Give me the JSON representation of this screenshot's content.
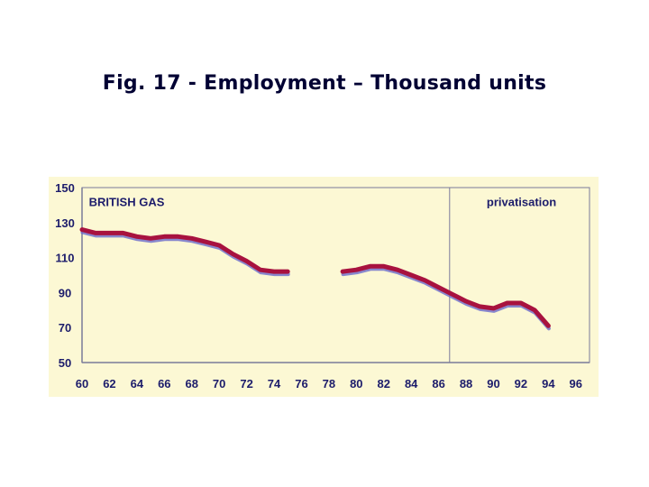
{
  "title": "Fig. 17 - Employment – Thousand units",
  "colors": {
    "background": "#fcf8d4",
    "line": "#a8123f",
    "shadow": "#6a6acb",
    "text": "#1c1c6b",
    "axis": "#7a7a9a"
  },
  "chart_data": {
    "type": "line",
    "title": "",
    "xlabel": "",
    "ylabel": "",
    "xlim": [
      60,
      97
    ],
    "ylim": [
      50,
      150
    ],
    "x_ticks": [
      60,
      62,
      64,
      66,
      68,
      70,
      72,
      74,
      76,
      78,
      80,
      82,
      84,
      86,
      88,
      90,
      92,
      94,
      96
    ],
    "x_tick_labels": [
      "60",
      "62",
      "64",
      "66",
      "68",
      "70",
      "72",
      "74",
      "76",
      "78",
      "80",
      "82",
      "84",
      "86",
      "88",
      "90",
      "92",
      "94",
      "96"
    ],
    "y_ticks": [
      50,
      70,
      90,
      110,
      130,
      150
    ],
    "y_tick_labels": [
      "50",
      "70",
      "90",
      "110",
      "130",
      "150"
    ],
    "grid": false,
    "annotations": [
      {
        "text": "BRITISH GAS",
        "x": 60.5,
        "y": 142
      },
      {
        "text": "privatisation",
        "x": 89.5,
        "y": 142
      }
    ],
    "vline": {
      "x": 86.8,
      "label": "privatisation"
    },
    "series": [
      {
        "name": "",
        "segments": [
          [
            [
              60,
              126
            ],
            [
              61,
              124
            ],
            [
              62,
              124
            ],
            [
              63,
              124
            ],
            [
              64,
              122
            ],
            [
              65,
              121
            ],
            [
              66,
              122
            ],
            [
              67,
              122
            ],
            [
              68,
              121
            ],
            [
              69,
              119
            ],
            [
              70,
              117
            ],
            [
              71,
              112
            ],
            [
              72,
              108
            ],
            [
              73,
              103
            ],
            [
              74,
              102
            ],
            [
              75,
              102
            ]
          ],
          [
            [
              79,
              102
            ],
            [
              80,
              103
            ],
            [
              81,
              105
            ],
            [
              82,
              105
            ],
            [
              83,
              103
            ],
            [
              84,
              100
            ],
            [
              85,
              97
            ],
            [
              86,
              93
            ],
            [
              87,
              89
            ],
            [
              88,
              85
            ],
            [
              89,
              82
            ],
            [
              90,
              81
            ],
            [
              91,
              84
            ],
            [
              92,
              84
            ],
            [
              93,
              80
            ],
            [
              94,
              71
            ]
          ]
        ]
      }
    ]
  }
}
